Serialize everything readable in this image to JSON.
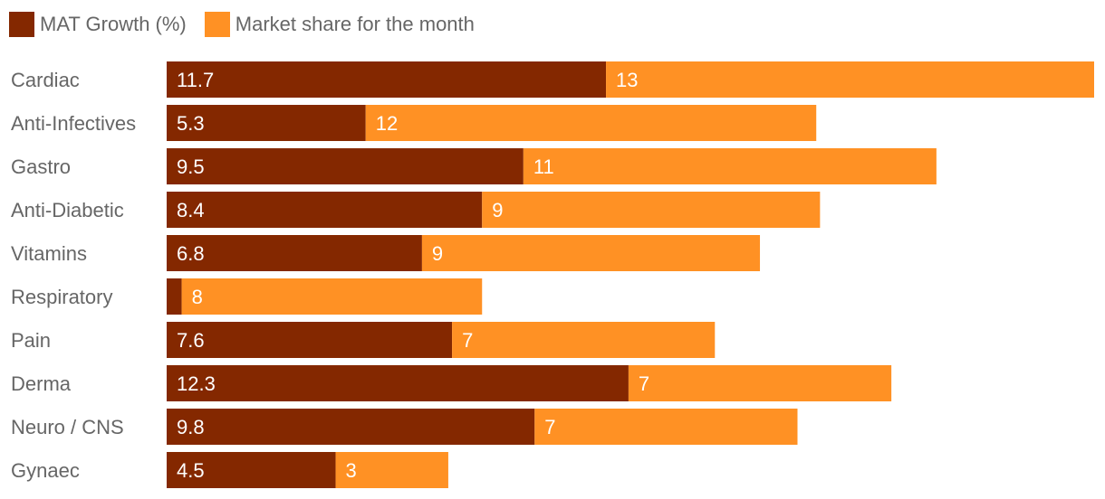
{
  "chart_data": {
    "type": "bar",
    "orientation": "horizontal",
    "stacked": true,
    "title": "",
    "xlabel": "",
    "ylabel": "",
    "grid": false,
    "legend_position": "top-left",
    "categories": [
      "Cardiac",
      "Anti-Infectives",
      "Gastro",
      "Anti-Diabetic",
      "Vitamins",
      "Respiratory",
      "Pain",
      "Derma",
      "Neuro / CNS",
      "Gynaec"
    ],
    "series": [
      {
        "name": "MAT Growth (%)",
        "color": "#842800",
        "values": [
          11.7,
          5.3,
          9.5,
          8.4,
          6.8,
          0.4,
          7.6,
          12.3,
          9.8,
          4.5
        ],
        "labels": [
          "11.7",
          "5.3",
          "9.5",
          "8.4",
          "6.8",
          "",
          "7.6",
          "12.3",
          "9.8",
          "4.5"
        ]
      },
      {
        "name": "Market share for the month",
        "color": "#ff9124",
        "values": [
          13,
          12,
          11,
          9,
          9,
          8,
          7,
          7,
          7,
          3
        ],
        "labels": [
          "13",
          "12",
          "11",
          "9",
          "9",
          "8",
          "7",
          "7",
          "7",
          "3"
        ]
      }
    ]
  }
}
